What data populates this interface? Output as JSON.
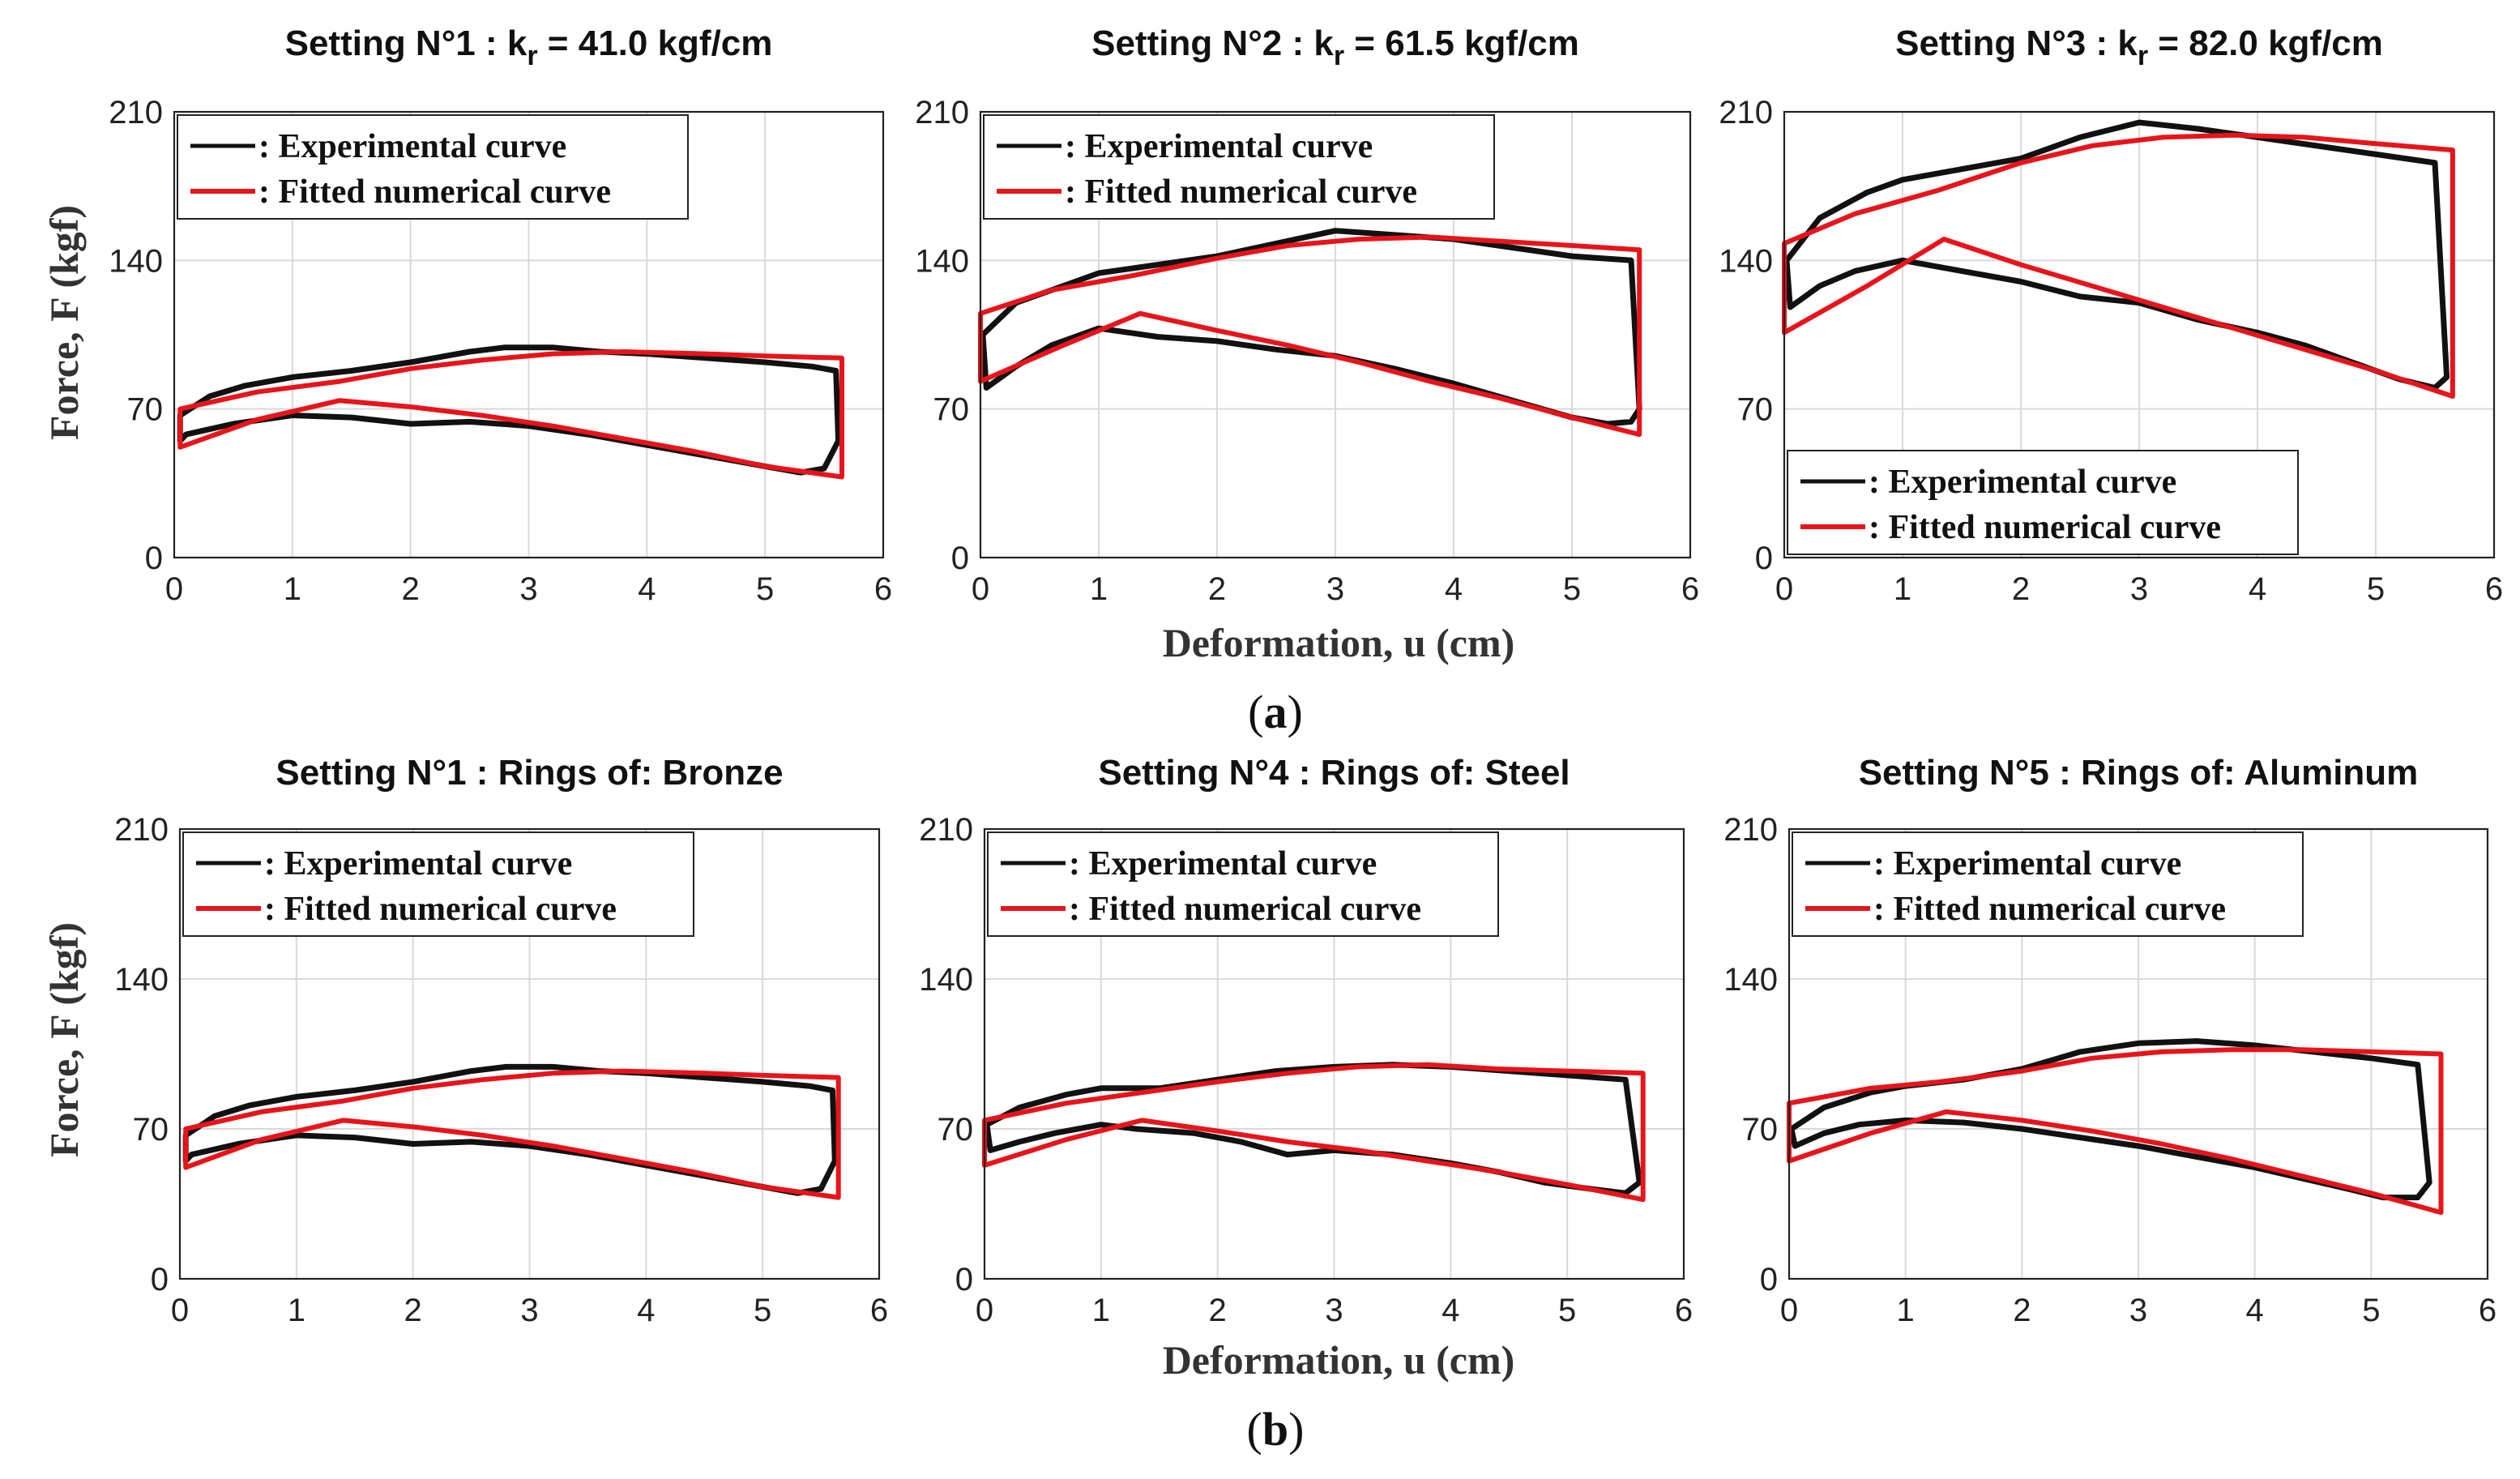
{
  "legend": {
    "exp": ": Experimental curve",
    "fit": ": Fitted numerical curve"
  },
  "colors": {
    "exp": "#111111",
    "fit": "#e8141b"
  },
  "labels": {
    "ylabel": "Force, F (kgf)",
    "xlabel": "Deformation, u (cm)",
    "panel_a": "a",
    "panel_b": "b"
  },
  "chart_data": [
    {
      "type": "line",
      "title": "Setting N°1 : k",
      "subscript": "r",
      "title_tail": " = 41.0 kgf/cm",
      "xlim": [
        0,
        6
      ],
      "ylim": [
        0,
        210
      ],
      "xticks": [
        0,
        1,
        2,
        3,
        4,
        5,
        6
      ],
      "yticks": [
        0,
        70,
        140,
        210
      ],
      "legend_position": "top-left",
      "series": [
        {
          "name": "Experimental curve",
          "x": [
            0.05,
            0.3,
            0.6,
            1.0,
            1.5,
            2.0,
            2.5,
            2.8,
            3.2,
            3.6,
            4.0,
            4.5,
            5.0,
            5.4,
            5.6,
            5.62,
            5.5,
            5.3,
            5.0,
            4.5,
            4.0,
            3.5,
            3.0,
            2.5,
            2.0,
            1.5,
            1.0,
            0.5,
            0.1,
            0.05,
            0.05
          ],
          "y": [
            67,
            76,
            81,
            85,
            88,
            92,
            97,
            99,
            99,
            97,
            96,
            94,
            92,
            90,
            88,
            55,
            42,
            40,
            43,
            48,
            53,
            58,
            62,
            64,
            63,
            66,
            67,
            63,
            58,
            55,
            67
          ]
        },
        {
          "name": "Fitted numerical curve",
          "x": [
            0.05,
            0.7,
            1.4,
            2.0,
            2.6,
            3.2,
            3.8,
            4.5,
            5.0,
            5.65,
            5.65,
            5.0,
            4.4,
            3.8,
            3.2,
            2.6,
            2.0,
            1.4,
            0.7,
            0.05,
            0.05
          ],
          "y": [
            70,
            78,
            83,
            89,
            93,
            96,
            97,
            96,
            95,
            94,
            38,
            43,
            50,
            56,
            62,
            67,
            71,
            74,
            65,
            52,
            70
          ]
        }
      ]
    },
    {
      "type": "line",
      "title": "Setting N°2 : k",
      "subscript": "r",
      "title_tail": " = 61.5 kgf/cm",
      "xlim": [
        0,
        6
      ],
      "ylim": [
        0,
        210
      ],
      "xticks": [
        0,
        1,
        2,
        3,
        4,
        5,
        6
      ],
      "yticks": [
        0,
        70,
        140,
        210
      ],
      "legend_position": "top-left",
      "series": [
        {
          "name": "Experimental curve",
          "x": [
            0.02,
            0.3,
            0.7,
            1.0,
            1.5,
            2.0,
            2.5,
            3.0,
            3.5,
            4.0,
            4.5,
            5.0,
            5.5,
            5.57,
            5.5,
            5.3,
            5.0,
            4.5,
            4.0,
            3.5,
            3.0,
            2.5,
            2.0,
            1.5,
            1.0,
            0.6,
            0.3,
            0.05,
            0.02
          ],
          "y": [
            105,
            120,
            128,
            134,
            138,
            142,
            148,
            154,
            152,
            150,
            146,
            142,
            140,
            70,
            64,
            63,
            66,
            74,
            82,
            89,
            95,
            98,
            102,
            104,
            108,
            100,
            90,
            80,
            105
          ]
        },
        {
          "name": "Fitted numerical curve",
          "x": [
            0.0,
            0.6,
            1.3,
            2.0,
            2.6,
            3.2,
            3.8,
            4.4,
            5.0,
            5.57,
            5.57,
            5.0,
            4.4,
            3.8,
            3.2,
            2.6,
            2.0,
            1.35,
            0.7,
            0.0,
            0.0
          ],
          "y": [
            115,
            126,
            133,
            141,
            147,
            150,
            151,
            149,
            147,
            145,
            58,
            66,
            75,
            83,
            92,
            100,
            107,
            115,
            100,
            83,
            115
          ]
        }
      ]
    },
    {
      "type": "line",
      "title": "Setting N°3 : k",
      "subscript": "r",
      "title_tail": " = 82.0 kgf/cm",
      "xlim": [
        0,
        6
      ],
      "ylim": [
        0,
        210
      ],
      "xticks": [
        0,
        1,
        2,
        3,
        4,
        5,
        6
      ],
      "yticks": [
        0,
        70,
        140,
        210
      ],
      "legend_position": "bottom-left",
      "series": [
        {
          "name": "Experimental curve",
          "x": [
            0.02,
            0.3,
            0.7,
            1.0,
            1.5,
            2.0,
            2.5,
            3.0,
            3.5,
            4.0,
            4.5,
            5.0,
            5.5,
            5.6,
            5.5,
            5.2,
            4.8,
            4.4,
            4.0,
            3.5,
            3.0,
            2.5,
            2.0,
            1.5,
            1.0,
            0.6,
            0.3,
            0.05,
            0.02
          ],
          "y": [
            140,
            160,
            172,
            178,
            183,
            188,
            198,
            205,
            202,
            198,
            194,
            190,
            186,
            85,
            80,
            84,
            92,
            100,
            106,
            112,
            120,
            123,
            130,
            135,
            140,
            135,
            128,
            118,
            140
          ]
        },
        {
          "name": "Fitted numerical curve",
          "x": [
            0.0,
            0.6,
            1.3,
            2.0,
            2.6,
            3.2,
            3.8,
            4.4,
            5.0,
            5.65,
            5.65,
            5.0,
            4.4,
            3.8,
            3.2,
            2.6,
            2.0,
            1.35,
            0.7,
            0.0,
            0.0
          ],
          "y": [
            148,
            162,
            173,
            186,
            194,
            198,
            199,
            198,
            195,
            192,
            76,
            88,
            98,
            108,
            118,
            128,
            138,
            150,
            128,
            106,
            148
          ]
        }
      ]
    },
    {
      "type": "line",
      "title": "Setting N°1 : Rings of: Bronze",
      "subscript": "",
      "title_tail": "",
      "xlim": [
        0,
        6
      ],
      "ylim": [
        0,
        210
      ],
      "xticks": [
        0,
        1,
        2,
        3,
        4,
        5,
        6
      ],
      "yticks": [
        0,
        70,
        140,
        210
      ],
      "legend_position": "top-left",
      "series": [
        {
          "name": "Experimental curve",
          "x": [
            0.05,
            0.3,
            0.6,
            1.0,
            1.5,
            2.0,
            2.5,
            2.8,
            3.2,
            3.6,
            4.0,
            4.5,
            5.0,
            5.4,
            5.6,
            5.62,
            5.5,
            5.3,
            5.0,
            4.5,
            4.0,
            3.5,
            3.0,
            2.5,
            2.0,
            1.5,
            1.0,
            0.5,
            0.1,
            0.05,
            0.05
          ],
          "y": [
            67,
            76,
            81,
            85,
            88,
            92,
            97,
            99,
            99,
            97,
            96,
            94,
            92,
            90,
            88,
            55,
            42,
            40,
            43,
            48,
            53,
            58,
            62,
            64,
            63,
            66,
            67,
            63,
            58,
            55,
            67
          ]
        },
        {
          "name": "Fitted numerical curve",
          "x": [
            0.05,
            0.7,
            1.4,
            2.0,
            2.6,
            3.2,
            3.8,
            4.5,
            5.0,
            5.65,
            5.65,
            5.0,
            4.4,
            3.8,
            3.2,
            2.6,
            2.0,
            1.4,
            0.7,
            0.05,
            0.05
          ],
          "y": [
            70,
            78,
            83,
            89,
            93,
            96,
            97,
            96,
            95,
            94,
            38,
            43,
            50,
            56,
            62,
            67,
            71,
            74,
            65,
            52,
            70
          ]
        }
      ]
    },
    {
      "type": "line",
      "title": "Setting N°4 : Rings of: Steel",
      "subscript": "",
      "title_tail": "",
      "xlim": [
        0,
        6
      ],
      "ylim": [
        0,
        210
      ],
      "xticks": [
        0,
        1,
        2,
        3,
        4,
        5,
        6
      ],
      "yticks": [
        0,
        70,
        140,
        210
      ],
      "legend_position": "top-left",
      "series": [
        {
          "name": "Experimental curve",
          "x": [
            0.02,
            0.3,
            0.7,
            1.0,
            1.5,
            2.0,
            2.5,
            3.0,
            3.5,
            4.0,
            4.5,
            5.0,
            5.5,
            5.62,
            5.5,
            5.2,
            4.8,
            4.4,
            4.0,
            3.5,
            3.0,
            2.6,
            2.2,
            1.8,
            1.3,
            1.0,
            0.6,
            0.3,
            0.05,
            0.02
          ],
          "y": [
            72,
            80,
            86,
            89,
            89,
            93,
            97,
            99,
            100,
            99,
            97,
            95,
            93,
            45,
            40,
            42,
            45,
            50,
            54,
            58,
            60,
            58,
            64,
            68,
            70,
            72,
            68,
            64,
            60,
            72
          ]
        },
        {
          "name": "Fitted numerical curve",
          "x": [
            0.0,
            0.7,
            1.35,
            2.0,
            2.6,
            3.2,
            3.8,
            4.4,
            5.0,
            5.65,
            5.65,
            5.0,
            4.4,
            3.8,
            3.2,
            2.6,
            2.0,
            1.35,
            0.7,
            0.0,
            0.0
          ],
          "y": [
            74,
            82,
            87,
            92,
            96,
            99,
            100,
            98,
            97,
            96,
            37,
            44,
            50,
            55,
            60,
            64,
            69,
            74,
            65,
            53,
            74
          ]
        }
      ]
    },
    {
      "type": "line",
      "title": "Setting N°5 : Rings of: Aluminum",
      "subscript": "",
      "title_tail": "",
      "xlim": [
        0,
        6
      ],
      "ylim": [
        0,
        210
      ],
      "xticks": [
        0,
        1,
        2,
        3,
        4,
        5,
        6
      ],
      "yticks": [
        0,
        70,
        140,
        210
      ],
      "legend_position": "top-left",
      "series": [
        {
          "name": "Experimental curve",
          "x": [
            0.02,
            0.3,
            0.7,
            1.0,
            1.5,
            2.0,
            2.5,
            3.0,
            3.5,
            4.0,
            4.5,
            5.0,
            5.4,
            5.5,
            5.4,
            5.1,
            4.8,
            4.4,
            4.0,
            3.5,
            3.0,
            2.5,
            2.0,
            1.5,
            1.0,
            0.6,
            0.3,
            0.05,
            0.02
          ],
          "y": [
            70,
            80,
            87,
            90,
            93,
            98,
            106,
            110,
            111,
            109,
            106,
            103,
            100,
            45,
            38,
            38,
            42,
            47,
            52,
            57,
            62,
            66,
            70,
            73,
            74,
            72,
            68,
            62,
            70
          ]
        },
        {
          "name": "Fitted numerical curve",
          "x": [
            0.0,
            0.7,
            1.3,
            2.0,
            2.6,
            3.2,
            3.8,
            4.4,
            5.0,
            5.6,
            5.6,
            5.0,
            4.4,
            3.8,
            3.2,
            2.6,
            2.0,
            1.35,
            0.7,
            0.0,
            0.0
          ],
          "y": [
            82,
            89,
            92,
            97,
            103,
            106,
            107,
            107,
            106,
            105,
            31,
            40,
            48,
            56,
            63,
            69,
            74,
            78,
            68,
            55,
            82
          ]
        }
      ]
    }
  ]
}
